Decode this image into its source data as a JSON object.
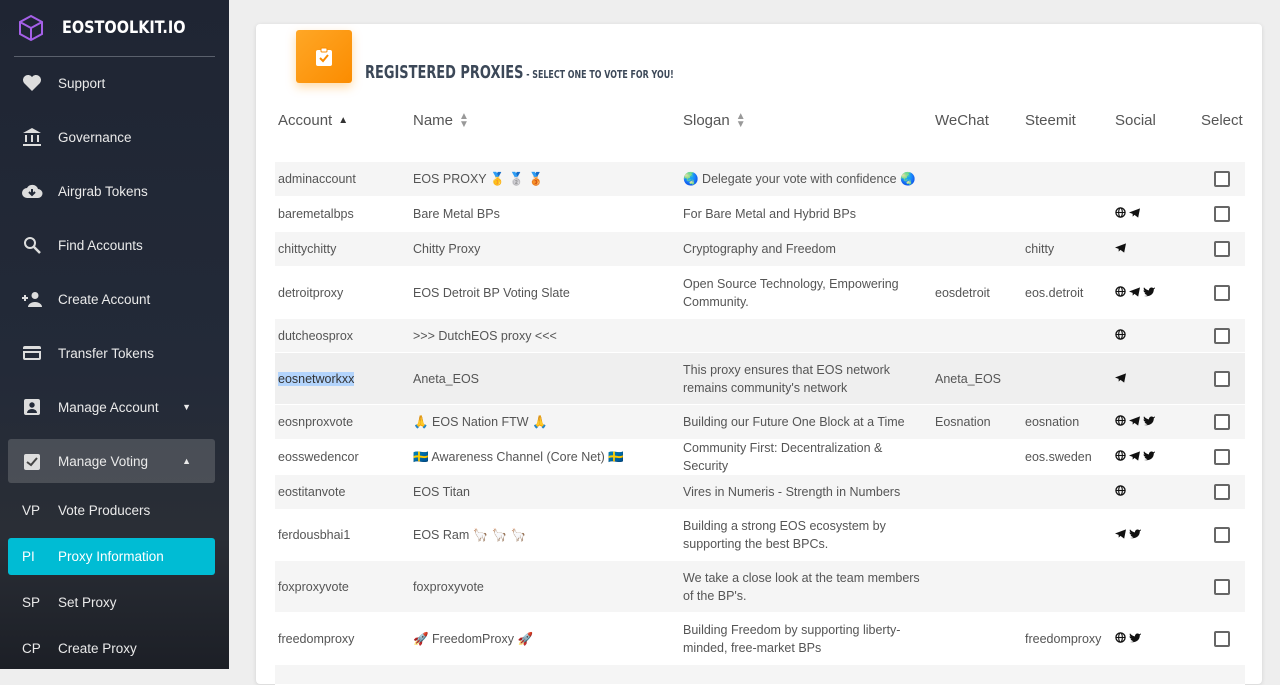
{
  "brand": {
    "name": "EOSTOOLKIT.IO"
  },
  "sidebar": {
    "items": [
      {
        "label": "Support",
        "icon": "heart-icon"
      },
      {
        "label": "Governance",
        "icon": "bank-icon"
      },
      {
        "label": "Airgrab Tokens",
        "icon": "cloud-download-icon"
      },
      {
        "label": "Find Accounts",
        "icon": "search-icon"
      },
      {
        "label": "Create Account",
        "icon": "person-add-icon"
      },
      {
        "label": "Transfer Tokens",
        "icon": "credit-card-icon"
      },
      {
        "label": "Manage Account",
        "icon": "account-box-icon",
        "caret": "▼"
      },
      {
        "label": "Manage Voting",
        "icon": "assignment-turned-in-icon",
        "caret": "▲"
      }
    ],
    "subitems": [
      {
        "abbr": "VP",
        "label": "Vote Producers"
      },
      {
        "abbr": "PI",
        "label": "Proxy Information",
        "active": true
      },
      {
        "abbr": "SP",
        "label": "Set Proxy"
      },
      {
        "abbr": "CP",
        "label": "Create Proxy"
      }
    ]
  },
  "card": {
    "title": "REGISTERED PROXIES",
    "subtitle": " - SELECT ONE TO VOTE FOR YOU!",
    "accent": "#fb8c00"
  },
  "table": {
    "columns": [
      "Account",
      "Name",
      "Slogan",
      "WeChat",
      "Steemit",
      "Social",
      "Select"
    ],
    "rows": [
      {
        "account": "adminaccount",
        "name": "EOS PROXY 🥇 🥈 🥉",
        "slogan": "🌏  Delegate your vote with confidence 🌏",
        "wechat": "",
        "steemit": "",
        "social": []
      },
      {
        "account": "baremetalbps",
        "name": "Bare Metal BPs",
        "slogan": "For Bare Metal and Hybrid BPs",
        "wechat": "",
        "steemit": "",
        "social": [
          "globe",
          "telegram"
        ]
      },
      {
        "account": "chittychitty",
        "name": "Chitty Proxy",
        "slogan": "Cryptography and Freedom",
        "wechat": "",
        "steemit": "chitty",
        "social": [
          "telegram"
        ]
      },
      {
        "account": "detroitproxy",
        "name": "EOS Detroit BP Voting Slate",
        "slogan": "Open Source Technology, Empowering Community.",
        "wechat": "eosdetroit",
        "steemit": "eos.detroit",
        "social": [
          "globe",
          "telegram",
          "twitter"
        ]
      },
      {
        "account": "dutcheosprox",
        "name": ">>> DutchEOS proxy <<<",
        "slogan": "",
        "wechat": "",
        "steemit": "",
        "social": [
          "globe"
        ]
      },
      {
        "account": "eosnetworkxx",
        "name": "Aneta_EOS",
        "slogan": "This proxy ensures that EOS network remains community's network",
        "wechat": "Aneta_EOS",
        "steemit": "",
        "social": [
          "telegram"
        ]
      },
      {
        "account": "eosnproxvote",
        "name": "🙏  EOS Nation FTW 🙏",
        "slogan": "Building our Future One Block at a Time",
        "wechat": "Eosnation",
        "steemit": "eosnation",
        "social": [
          "globe",
          "telegram",
          "twitter"
        ]
      },
      {
        "account": "eosswedencor",
        "name": "🇸🇪  Awareness Channel (Core Net) 🇸🇪",
        "slogan": "Community First: Decentralization & Security",
        "wechat": "",
        "steemit": "eos.sweden",
        "social": [
          "globe",
          "telegram",
          "twitter"
        ]
      },
      {
        "account": "eostitanvote",
        "name": "EOS Titan",
        "slogan": "Vires in Numeris - Strength in Numbers",
        "wechat": "",
        "steemit": "",
        "social": [
          "globe"
        ]
      },
      {
        "account": "ferdousbhai1",
        "name": "EOS Ram 🦙 🦙 🦙",
        "slogan": "Building a strong EOS ecosystem by supporting the best BPCs.",
        "wechat": "",
        "steemit": "",
        "social": [
          "telegram",
          "twitter"
        ]
      },
      {
        "account": "foxproxyvote",
        "name": "foxproxyvote",
        "slogan": "We take a close look at the team members of the BP's.",
        "wechat": "",
        "steemit": "",
        "social": []
      },
      {
        "account": "freedomproxy",
        "name": "🚀  FreedomProxy 🚀",
        "slogan": "Building Freedom by supporting liberty-minded, free-market BPs",
        "wechat": "",
        "steemit": "freedomproxy",
        "social": [
          "globe",
          "twitter"
        ]
      }
    ]
  }
}
